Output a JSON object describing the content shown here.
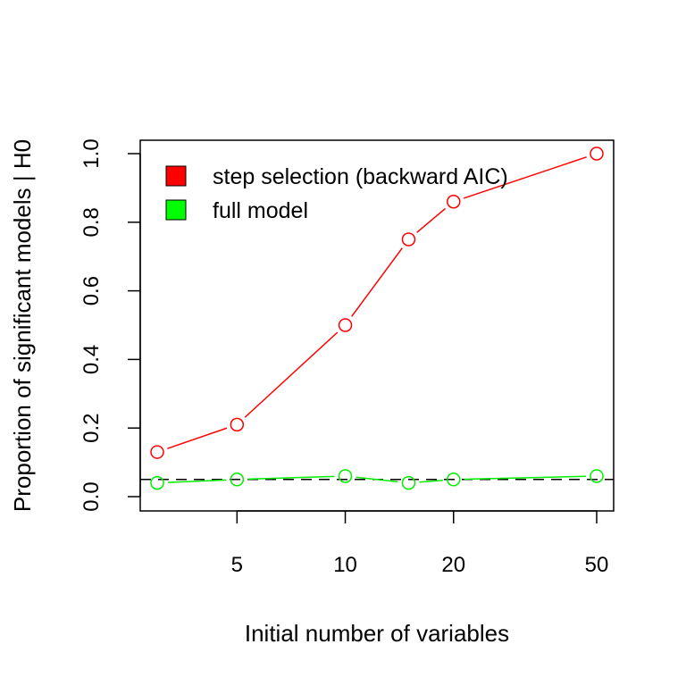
{
  "chart_data": {
    "type": "line",
    "x_scale": "log",
    "title": "",
    "xlabel": "Initial number of variables",
    "ylabel": "Proportion of significant models | H0",
    "x": [
      3,
      5,
      10,
      15,
      20,
      50
    ],
    "x_ticks": [
      5,
      10,
      20,
      50
    ],
    "y_ticks": [
      0.0,
      0.2,
      0.4,
      0.6,
      0.8,
      1.0
    ],
    "y_tick_labels": [
      "0.0",
      "0.2",
      "0.4",
      "0.6",
      "0.8",
      "1.0"
    ],
    "xlim": [
      3,
      50
    ],
    "ylim": [
      0,
      1
    ],
    "reference_line": {
      "y": 0.05,
      "style": "dashed",
      "color": "#000000"
    },
    "legend_position": "top-left",
    "grid": false,
    "series": [
      {
        "name": "step selection (backward AIC)",
        "color": "#ff0000",
        "values": [
          0.13,
          0.21,
          0.5,
          0.75,
          0.86,
          1.0
        ]
      },
      {
        "name": "full model",
        "color": "#00ee00",
        "values": [
          0.04,
          0.05,
          0.06,
          0.04,
          0.05,
          0.06
        ]
      }
    ]
  }
}
